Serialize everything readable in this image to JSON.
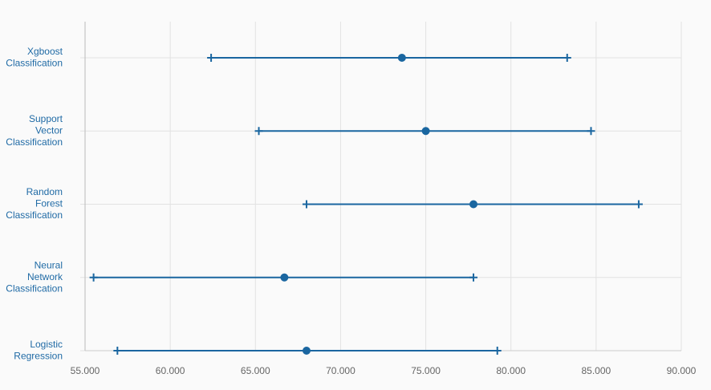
{
  "chart_data": {
    "type": "interval",
    "categories": [
      [
        "Xgboost",
        "Classification"
      ],
      [
        "Support",
        "Vector",
        "Classification"
      ],
      [
        "Random",
        "Forest",
        "Classification"
      ],
      [
        "Neural",
        "Network",
        "Classification"
      ],
      [
        "Logistic",
        "Regression"
      ]
    ],
    "values": [
      73.6,
      75.0,
      77.8,
      66.7,
      68.0
    ],
    "lower": [
      62.4,
      65.2,
      68.0,
      55.5,
      56.9
    ],
    "upper": [
      83.3,
      84.7,
      87.5,
      77.8,
      79.2
    ],
    "color": "#1a66a0",
    "xlim": [
      55,
      90
    ],
    "xticks": [
      {
        "value": 55,
        "label": "55.000"
      },
      {
        "value": 60,
        "label": "60.000"
      },
      {
        "value": 65,
        "label": "65.000"
      },
      {
        "value": 70,
        "label": "70.000"
      },
      {
        "value": 75,
        "label": "75.000"
      },
      {
        "value": 80,
        "label": "80.000"
      },
      {
        "value": 85,
        "label": "85.000"
      },
      {
        "value": 90,
        "label": "90.000"
      }
    ],
    "grid": true
  }
}
